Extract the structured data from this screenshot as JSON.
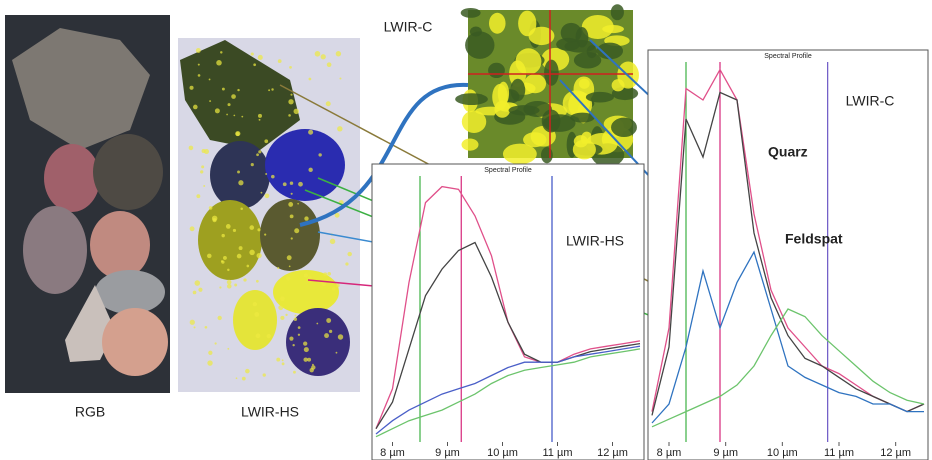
{
  "captions": {
    "rgb": "RGB",
    "hs": "LWIR-HS",
    "inset": "LWIR-C"
  },
  "chart_data": [
    {
      "type": "line",
      "title": "Spectral Profile",
      "label": "LWIR-HS",
      "x": [
        7.7,
        8.0,
        8.3,
        8.6,
        8.9,
        9.2,
        9.5,
        9.8,
        10.1,
        10.4,
        10.7,
        11.0,
        11.3,
        11.6,
        11.9,
        12.2,
        12.5
      ],
      "xlim": [
        7.7,
        12.5
      ],
      "ylim": [
        0,
        1
      ],
      "xticks": [
        {
          "value": 8,
          "label": "8 µm"
        },
        {
          "value": 9,
          "label": "9 µm"
        },
        {
          "value": 10,
          "label": "10 µm"
        },
        {
          "value": 11,
          "label": "11 µm"
        },
        {
          "value": 12,
          "label": "12 µm"
        }
      ],
      "markers": [
        {
          "value": 8.5,
          "color": "#3cb043"
        },
        {
          "value": 9.25,
          "color": "#d6267a"
        },
        {
          "value": 10.9,
          "color": "#3a4fc4"
        }
      ],
      "series": [
        {
          "color": "#e0508a",
          "values": [
            0.05,
            0.2,
            0.6,
            0.9,
            0.96,
            0.95,
            0.85,
            0.7,
            0.45,
            0.32,
            0.3,
            0.3,
            0.33,
            0.35,
            0.36,
            0.37,
            0.38
          ]
        },
        {
          "color": "#444444",
          "values": [
            0.05,
            0.15,
            0.35,
            0.55,
            0.65,
            0.72,
            0.75,
            0.62,
            0.45,
            0.33,
            0.3,
            0.3,
            0.32,
            0.34,
            0.35,
            0.36,
            0.37
          ]
        },
        {
          "color": "#4a5fc8",
          "values": [
            0.03,
            0.08,
            0.12,
            0.15,
            0.18,
            0.2,
            0.22,
            0.25,
            0.28,
            0.3,
            0.3,
            0.3,
            0.32,
            0.33,
            0.34,
            0.35,
            0.36
          ]
        },
        {
          "color": "#6cc46c",
          "values": [
            0.02,
            0.05,
            0.08,
            0.1,
            0.12,
            0.15,
            0.18,
            0.22,
            0.25,
            0.27,
            0.28,
            0.29,
            0.3,
            0.32,
            0.33,
            0.34,
            0.35
          ]
        }
      ]
    },
    {
      "type": "line",
      "title": "Spectral Profile",
      "label": "LWIR-C",
      "annotations": [
        "Quarz",
        "Feldspat"
      ],
      "x": [
        7.7,
        8.0,
        8.3,
        8.6,
        8.9,
        9.2,
        9.5,
        9.8,
        10.1,
        10.4,
        10.7,
        11.0,
        11.3,
        11.6,
        11.9,
        12.2,
        12.5
      ],
      "xlim": [
        7.7,
        12.5
      ],
      "ylim": [
        0,
        1
      ],
      "xticks": [
        {
          "value": 8,
          "label": "8 µm"
        },
        {
          "value": 9,
          "label": "9 µm"
        },
        {
          "value": 10,
          "label": "10 µm"
        },
        {
          "value": 11,
          "label": "11 µm"
        },
        {
          "value": 12,
          "label": "12 µm"
        }
      ],
      "markers": [
        {
          "value": 8.3,
          "color": "#3cb043"
        },
        {
          "value": 8.9,
          "color": "#d6267a"
        },
        {
          "value": 10.8,
          "color": "#6a55c4"
        }
      ],
      "series": [
        {
          "color": "#e0508a",
          "values": [
            0.08,
            0.3,
            0.93,
            0.9,
            0.98,
            0.9,
            0.6,
            0.4,
            0.3,
            0.25,
            0.2,
            0.18,
            0.15,
            0.12,
            0.1,
            0.08,
            0.1
          ]
        },
        {
          "color": "#444444",
          "values": [
            0.07,
            0.25,
            0.85,
            0.75,
            0.92,
            0.9,
            0.55,
            0.38,
            0.28,
            0.22,
            0.2,
            0.17,
            0.14,
            0.12,
            0.1,
            0.08,
            0.1
          ]
        },
        {
          "color": "#2f73c0",
          "values": [
            0.05,
            0.1,
            0.25,
            0.45,
            0.3,
            0.42,
            0.5,
            0.35,
            0.2,
            0.17,
            0.15,
            0.13,
            0.12,
            0.1,
            0.1,
            0.08,
            0.08
          ]
        },
        {
          "color": "#6cc46c",
          "values": [
            0.04,
            0.06,
            0.08,
            0.1,
            0.12,
            0.15,
            0.2,
            0.28,
            0.35,
            0.33,
            0.28,
            0.24,
            0.2,
            0.16,
            0.13,
            0.11,
            0.1
          ]
        }
      ]
    }
  ]
}
